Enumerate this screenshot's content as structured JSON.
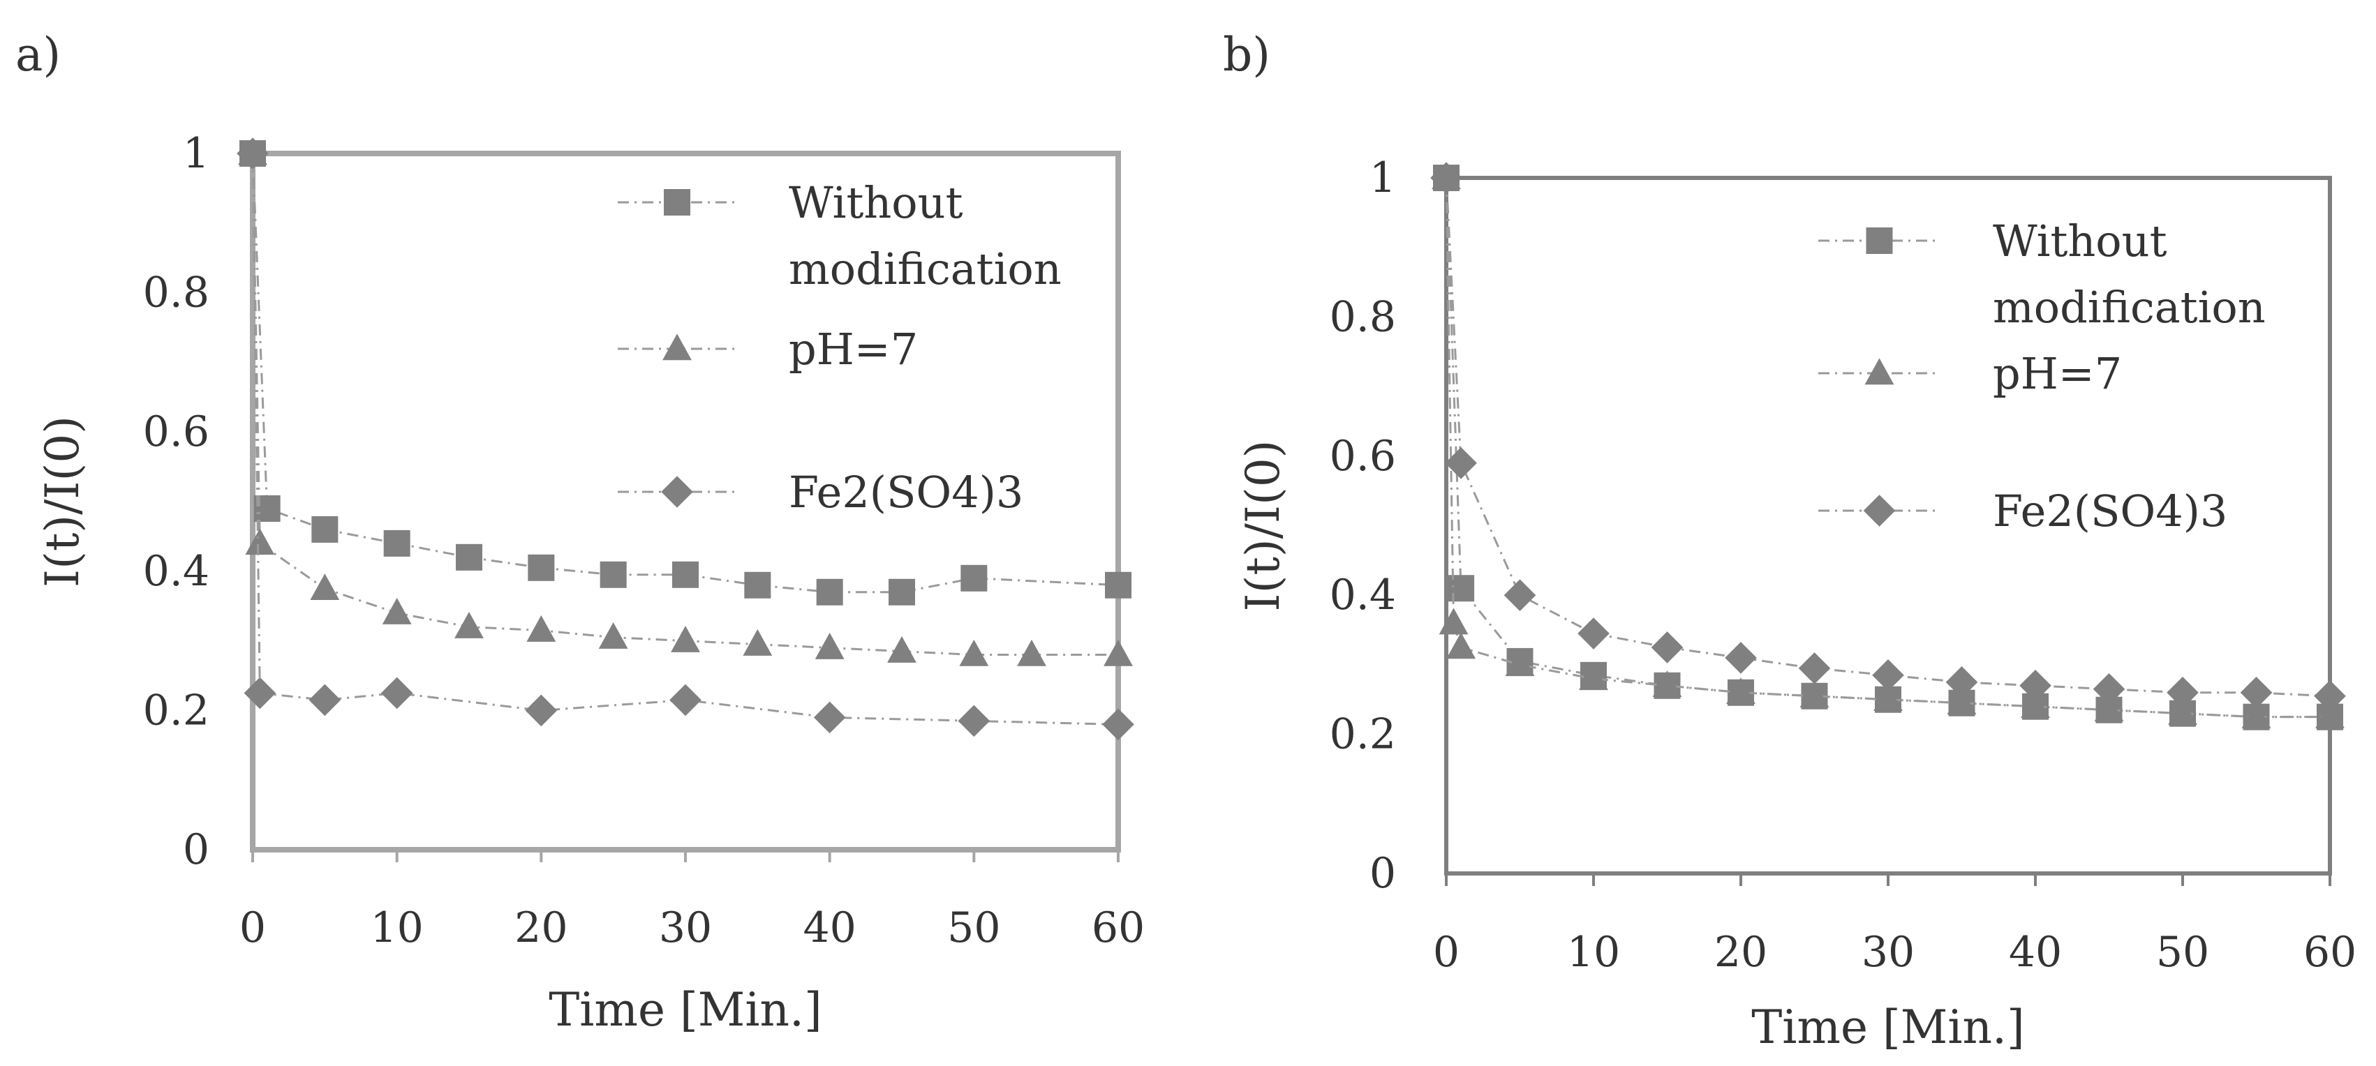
{
  "figure": {
    "panel_labels": [
      "a)",
      "b)"
    ]
  },
  "chart_data": [
    {
      "type": "line",
      "panel": "a)",
      "title": "",
      "xlabel": "Time [Min.]",
      "ylabel": "I(t)/I(0)",
      "xlim": [
        0,
        60
      ],
      "ylim": [
        0,
        1
      ],
      "xticks": [
        0,
        10,
        20,
        30,
        40,
        50,
        60
      ],
      "yticks": [
        0,
        0.2,
        0.4,
        0.6,
        0.8,
        1
      ],
      "ytick_labels": [
        "0",
        "0.2",
        "0.4",
        "0.6",
        "0.8",
        "1"
      ],
      "grid": false,
      "legend_position": "top-right",
      "frame_color": "#a6a6a6",
      "series": [
        {
          "name": "Without modification",
          "legend_lines": [
            "Without",
            "modification"
          ],
          "marker": "square",
          "color": "#808080",
          "x": [
            0,
            1,
            5,
            10,
            15,
            20,
            25,
            30,
            35,
            40,
            45,
            50,
            60
          ],
          "y": [
            1,
            0.49,
            0.46,
            0.44,
            0.42,
            0.405,
            0.395,
            0.395,
            0.38,
            0.37,
            0.37,
            0.39,
            0.38
          ]
        },
        {
          "name": "pH=7",
          "legend_lines": [
            "pH=7"
          ],
          "marker": "triangle",
          "color": "#808080",
          "x": [
            0,
            0.5,
            5,
            10,
            15,
            20,
            25,
            30,
            35,
            40,
            45,
            50,
            54,
            60
          ],
          "y": [
            1,
            0.44,
            0.375,
            0.34,
            0.32,
            0.315,
            0.305,
            0.3,
            0.295,
            0.29,
            0.285,
            0.28,
            0.28,
            0.28
          ]
        },
        {
          "name": "Fe2(SO4)3",
          "legend_lines": [
            "Fe2(SO4)3"
          ],
          "marker": "diamond",
          "color": "#808080",
          "x": [
            0,
            0.5,
            5,
            10,
            20,
            30,
            40,
            50,
            60
          ],
          "y": [
            1,
            0.225,
            0.215,
            0.225,
            0.2,
            0.215,
            0.19,
            0.185,
            0.18
          ]
        }
      ]
    },
    {
      "type": "line",
      "panel": "b)",
      "title": "",
      "xlabel": "Time [Min.]",
      "ylabel": "I(t)/I(0)",
      "xlim": [
        0,
        60
      ],
      "ylim": [
        0,
        1
      ],
      "xticks": [
        0,
        10,
        20,
        30,
        40,
        50,
        60
      ],
      "yticks": [
        0,
        0.2,
        0.4,
        0.6,
        0.8,
        1
      ],
      "ytick_labels": [
        "0",
        "0.2",
        "0.4",
        "0.6",
        "0.8",
        "1"
      ],
      "grid": false,
      "legend_position": "top-right",
      "frame_color": "#7f7f7f",
      "series": [
        {
          "name": "Without modification",
          "legend_lines": [
            "Without",
            "modification"
          ],
          "marker": "square",
          "color": "#808080",
          "x": [
            0,
            1,
            5,
            10,
            15,
            20,
            25,
            30,
            35,
            40,
            45,
            50,
            55,
            60
          ],
          "y": [
            1,
            0.41,
            0.305,
            0.285,
            0.27,
            0.26,
            0.255,
            0.25,
            0.245,
            0.24,
            0.235,
            0.23,
            0.225,
            0.225
          ]
        },
        {
          "name": "pH=7",
          "legend_lines": [
            "pH=7"
          ],
          "marker": "triangle",
          "color": "#808080",
          "x": [
            0,
            0.5,
            1,
            5,
            10,
            15,
            20,
            25,
            30,
            35,
            40,
            45,
            50,
            55,
            60
          ],
          "y": [
            1,
            0.36,
            0.325,
            0.3,
            0.28,
            0.27,
            0.26,
            0.255,
            0.25,
            0.245,
            0.24,
            0.235,
            0.23,
            0.225,
            0.225
          ]
        },
        {
          "name": "Fe2(SO4)3",
          "legend_lines": [
            "Fe2(SO4)3"
          ],
          "marker": "diamond",
          "color": "#808080",
          "x": [
            0,
            1,
            5,
            10,
            15,
            20,
            25,
            30,
            35,
            40,
            45,
            50,
            55,
            60
          ],
          "y": [
            1,
            0.59,
            0.4,
            0.345,
            0.325,
            0.31,
            0.295,
            0.285,
            0.275,
            0.27,
            0.265,
            0.26,
            0.26,
            0.255
          ]
        }
      ]
    }
  ]
}
